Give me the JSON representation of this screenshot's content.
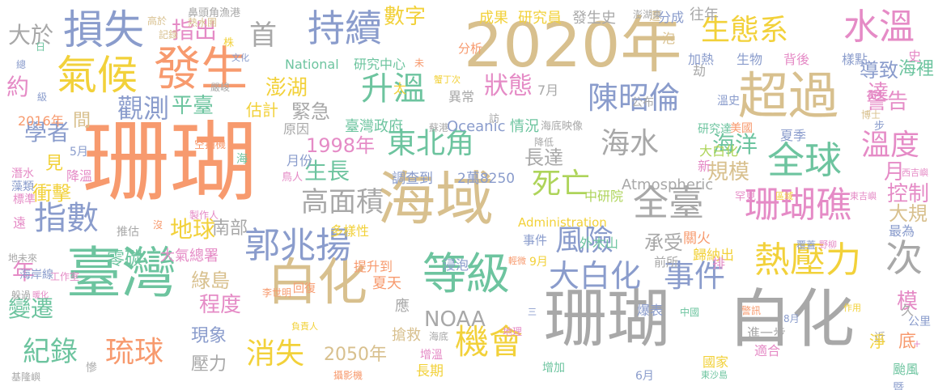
{
  "palette": {
    "orange": "#f79a6e",
    "tan": "#d8c08e",
    "gray": "#a8a8a8",
    "blue": "#8a9ccc",
    "green": "#6dc49f",
    "pink": "#e58bc6",
    "yellow": "#f2d13a",
    "lime": "#aed45a"
  },
  "words": [
    {
      "text": "珊瑚",
      "color": "orange"
    },
    {
      "text": "珊瑚",
      "color": "gray"
    },
    {
      "text": "白化",
      "color": "gray"
    },
    {
      "text": "2020年",
      "color": "tan"
    },
    {
      "text": "海域",
      "color": "tan"
    },
    {
      "text": "臺灣",
      "color": "green"
    },
    {
      "text": "白化",
      "color": "tan"
    },
    {
      "text": "超過",
      "color": "tan"
    },
    {
      "text": "發生",
      "color": "orange"
    },
    {
      "text": "等級",
      "color": "green"
    },
    {
      "text": "損失",
      "color": "blue"
    },
    {
      "text": "氣候",
      "color": "yellow"
    },
    {
      "text": "持續",
      "color": "blue"
    },
    {
      "text": "全球",
      "color": "green"
    },
    {
      "text": "珊瑚礁",
      "color": "pink"
    },
    {
      "text": "全臺",
      "color": "gray"
    },
    {
      "text": "郭兆揚",
      "color": "blue"
    },
    {
      "text": "熱壓力",
      "color": "yellow"
    },
    {
      "text": "水溫",
      "color": "pink"
    },
    {
      "text": "陳昭倫",
      "color": "blue"
    },
    {
      "text": "東北角",
      "color": "green"
    },
    {
      "text": "海水",
      "color": "gray"
    },
    {
      "text": "機會",
      "color": "yellow"
    },
    {
      "text": "升溫",
      "color": "green"
    },
    {
      "text": "死亡",
      "color": "lime"
    },
    {
      "text": "指數",
      "color": "blue"
    },
    {
      "text": "風險",
      "color": "blue"
    },
    {
      "text": "大白化",
      "color": "blue"
    },
    {
      "text": "事件",
      "color": "blue"
    },
    {
      "text": "次",
      "color": "gray"
    },
    {
      "text": "消失",
      "color": "yellow"
    },
    {
      "text": "琉球",
      "color": "orange"
    },
    {
      "text": "高面積",
      "color": "gray"
    },
    {
      "text": "狀態",
      "color": "pink"
    },
    {
      "text": "生態系",
      "color": "yellow"
    },
    {
      "text": "溫度",
      "color": "pink"
    },
    {
      "text": "觀測",
      "color": "blue"
    },
    {
      "text": "平臺",
      "color": "green"
    },
    {
      "text": "紀錄",
      "color": "green"
    },
    {
      "text": "數字",
      "color": "yellow"
    },
    {
      "text": "首",
      "color": "gray"
    },
    {
      "text": "指出",
      "color": "pink"
    },
    {
      "text": "約",
      "color": "pink"
    },
    {
      "text": "生長",
      "color": "green"
    },
    {
      "text": "地球",
      "color": "yellow"
    },
    {
      "text": "1998年",
      "color": "pink"
    },
    {
      "text": "2050年",
      "color": "tan"
    },
    {
      "text": "NOAA",
      "color": "gray"
    },
    {
      "text": "程度",
      "color": "pink"
    },
    {
      "text": "年",
      "color": "pink"
    },
    {
      "text": "變遷",
      "color": "green"
    },
    {
      "text": "海洋",
      "color": "green"
    },
    {
      "text": "長達",
      "color": "gray"
    },
    {
      "text": "導致",
      "color": "blue"
    },
    {
      "text": "海裡",
      "color": "green"
    },
    {
      "text": "警告",
      "color": "pink"
    },
    {
      "text": "控制",
      "color": "pink"
    },
    {
      "text": "規模",
      "color": "tan"
    },
    {
      "text": "月",
      "color": "pink"
    },
    {
      "text": "達",
      "color": "pink"
    },
    {
      "text": "大於",
      "color": "gray"
    },
    {
      "text": "學者",
      "color": "blue"
    },
    {
      "text": "澎湖",
      "color": "yellow"
    },
    {
      "text": "緊急",
      "color": "gray"
    },
    {
      "text": "南部",
      "color": "gray"
    },
    {
      "text": "零碳",
      "color": "green"
    },
    {
      "text": "綠島",
      "color": "tan"
    },
    {
      "text": "現象",
      "color": "blue"
    },
    {
      "text": "壓力",
      "color": "gray"
    },
    {
      "text": "承受",
      "color": "gray"
    },
    {
      "text": "大規",
      "color": "tan"
    },
    {
      "text": "衝擊",
      "color": "yellow"
    },
    {
      "text": "模",
      "color": "pink"
    },
    {
      "text": "底",
      "color": "orange"
    },
    {
      "text": "成果",
      "color": "yellow"
    },
    {
      "text": "研究員",
      "color": "yellow"
    },
    {
      "text": "發生史",
      "color": "gray"
    },
    {
      "text": "估計",
      "color": "yellow"
    },
    {
      "text": "情況",
      "color": "green"
    },
    {
      "text": "Oceanic",
      "color": "blue"
    },
    {
      "text": "National",
      "color": "green"
    },
    {
      "text": "研究中心",
      "color": "green"
    },
    {
      "text": "Atmospheric",
      "color": "gray"
    },
    {
      "text": "Administration",
      "color": "yellow"
    },
    {
      "text": "調查到",
      "color": "blue"
    },
    {
      "text": "2萬8250",
      "color": "blue"
    },
    {
      "text": "中研院",
      "color": "lime"
    },
    {
      "text": "臺灣政府",
      "color": "green"
    },
    {
      "text": "異常",
      "color": "gray"
    },
    {
      "text": "原因",
      "color": "gray"
    },
    {
      "text": "7月",
      "color": "gray"
    },
    {
      "text": "大氣總署",
      "color": "pink"
    },
    {
      "text": "多樣性",
      "color": "yellow"
    },
    {
      "text": "提升到",
      "color": "orange"
    },
    {
      "text": "浸泡",
      "color": "blue"
    },
    {
      "text": "9月",
      "color": "yellow"
    },
    {
      "text": "夏天",
      "color": "orange"
    },
    {
      "text": "海岸線",
      "color": "blue"
    },
    {
      "text": "應",
      "color": "gray"
    },
    {
      "text": "搶救",
      "color": "tan"
    },
    {
      "text": "增溫",
      "color": "pink"
    },
    {
      "text": "長期",
      "color": "yellow"
    },
    {
      "text": "事件",
      "color": "blue"
    },
    {
      "text": "輕微",
      "color": "orange"
    },
    {
      "text": "外木山",
      "color": "green"
    },
    {
      "text": "前所",
      "color": "gray"
    },
    {
      "text": "關火",
      "color": "orange"
    },
    {
      "text": "歸納出",
      "color": "yellow"
    },
    {
      "text": "排",
      "color": "pink"
    },
    {
      "text": "最為",
      "color": "blue"
    },
    {
      "text": "爆表",
      "color": "blue"
    },
    {
      "text": "進一步",
      "color": "gray"
    },
    {
      "text": "作用",
      "color": "yellow"
    },
    {
      "text": "公里",
      "color": "blue"
    },
    {
      "text": "颱風",
      "color": "green"
    },
    {
      "text": "暨",
      "color": "blue"
    },
    {
      "text": "國家",
      "color": "yellow"
    },
    {
      "text": "增加",
      "color": "green"
    },
    {
      "text": "6月",
      "color": "blue"
    },
    {
      "text": "適合",
      "color": "pink"
    },
    {
      "text": "東沙島",
      "color": "green"
    },
    {
      "text": "中國",
      "color": "green"
    },
    {
      "text": "三",
      "color": "blue"
    },
    {
      "text": "地理",
      "color": "pink"
    },
    {
      "text": "5月",
      "color": "blue"
    },
    {
      "text": "降溫",
      "color": "pink"
    },
    {
      "text": "見",
      "color": "yellow"
    },
    {
      "text": "標準",
      "color": "pink"
    },
    {
      "text": "遠",
      "color": "pink"
    },
    {
      "text": "推估",
      "color": "gray"
    },
    {
      "text": "沒",
      "color": "orange"
    },
    {
      "text": "間",
      "color": "tan"
    },
    {
      "text": "2016年",
      "color": "orange"
    },
    {
      "text": "級",
      "color": "blue"
    },
    {
      "text": "總",
      "color": "blue"
    },
    {
      "text": "日",
      "color": "green"
    },
    {
      "text": "株",
      "color": "yellow"
    },
    {
      "text": "文化",
      "color": "blue"
    },
    {
      "text": "高於",
      "color": "tan"
    },
    {
      "text": "記錄",
      "color": "tan"
    },
    {
      "text": "熱水團",
      "color": "tan"
    },
    {
      "text": "鼻頭角漁港",
      "color": "gray"
    },
    {
      "text": "嚴峻",
      "color": "gray"
    },
    {
      "text": "太",
      "color": "yellow"
    },
    {
      "text": "未",
      "color": "orange"
    },
    {
      "text": "分析",
      "color": "orange"
    },
    {
      "text": "往年",
      "color": "gray"
    },
    {
      "text": "泡",
      "color": "tan"
    },
    {
      "text": "加熱",
      "color": "blue"
    },
    {
      "text": "生物",
      "color": "blue"
    },
    {
      "text": "背後",
      "color": "pink"
    },
    {
      "text": "樣點",
      "color": "blue"
    },
    {
      "text": "史",
      "color": "pink"
    },
    {
      "text": "分成",
      "color": "blue"
    },
    {
      "text": "遭",
      "color": "tan"
    },
    {
      "text": "澎湖東",
      "color": "gray"
    },
    {
      "text": "劫",
      "color": "gray"
    },
    {
      "text": "公布",
      "color": "gray"
    },
    {
      "text": "溫史",
      "color": "blue"
    },
    {
      "text": "博士",
      "color": "tan"
    },
    {
      "text": "步",
      "color": "blue"
    },
    {
      "text": "研究達",
      "color": "green"
    },
    {
      "text": "美國",
      "color": "orange"
    },
    {
      "text": "夏季",
      "color": "blue"
    },
    {
      "text": "大白化",
      "color": "lime"
    },
    {
      "text": "新",
      "color": "pink"
    },
    {
      "text": "罕見",
      "color": "pink"
    },
    {
      "text": "區域",
      "color": "yellow"
    },
    {
      "text": "東吉嶼",
      "color": "pink"
    },
    {
      "text": "西吉嶼",
      "color": "pink"
    },
    {
      "text": "覆蓋",
      "color": "blue"
    },
    {
      "text": "野柳",
      "color": "pink"
    },
    {
      "text": "海底映像",
      "color": "gray"
    },
    {
      "text": "降低",
      "color": "gray"
    },
    {
      "text": "蘇港",
      "color": "gray"
    },
    {
      "text": "訪",
      "color": "gray"
    },
    {
      "text": "蟹丁次",
      "color": "yellow"
    },
    {
      "text": "鳥人",
      "color": "pink"
    },
    {
      "text": "月份",
      "color": "blue"
    },
    {
      "text": "海",
      "color": "green"
    },
    {
      "text": "空拍機",
      "color": "orange"
    },
    {
      "text": "潛水",
      "color": "pink"
    },
    {
      "text": "藻類",
      "color": "blue"
    },
    {
      "text": "製作人",
      "color": "pink"
    },
    {
      "text": "工作室",
      "color": "pink"
    },
    {
      "text": "地未來",
      "color": "gray"
    },
    {
      "text": "李世明",
      "color": "orange"
    },
    {
      "text": "回復",
      "color": "orange"
    },
    {
      "text": "負責人",
      "color": "yellow"
    },
    {
      "text": "海底",
      "color": "gray"
    },
    {
      "text": "攝影機",
      "color": "orange"
    },
    {
      "text": "基隆嶼",
      "color": "gray"
    },
    {
      "text": "慘",
      "color": "gray"
    },
    {
      "text": "躲過",
      "color": "gray"
    },
    {
      "text": "暖化",
      "color": "pink"
    },
    {
      "text": "警訊",
      "color": "orange"
    },
    {
      "text": "8月",
      "color": "blue"
    },
    {
      "text": "近",
      "color": "gray"
    },
    {
      "text": "淨",
      "color": "yellow"
    },
    {
      "text": "久",
      "color": "gray"
    },
    {
      "text": "+",
      "color": "pink"
    }
  ]
}
